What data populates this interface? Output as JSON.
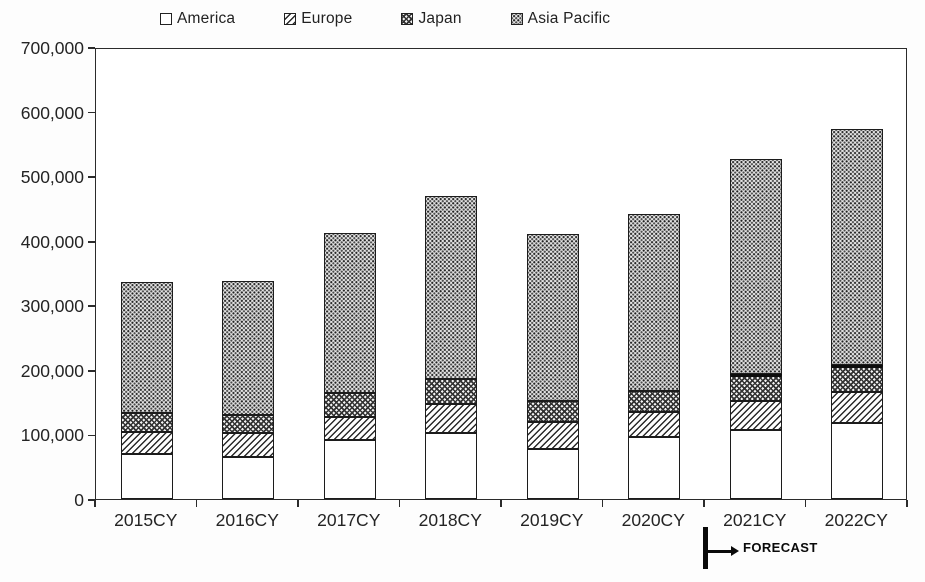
{
  "colors": {
    "ink": "#1f1f1f",
    "border": "#2b2b2b",
    "background": "#ffffff"
  },
  "legend": {
    "items": [
      {
        "label": "America",
        "pattern": "america",
        "swatch_icon": "white-square-icon"
      },
      {
        "label": "Europe",
        "pattern": "europe",
        "swatch_icon": "diagonal-hatch-square-icon"
      },
      {
        "label": "Japan",
        "pattern": "japan",
        "swatch_icon": "crosshatch-square-icon"
      },
      {
        "label": "Asia Pacific",
        "pattern": "asia",
        "swatch_icon": "dotted-square-icon"
      }
    ]
  },
  "chart_data": {
    "type": "bar",
    "stacked": true,
    "title": "",
    "xlabel": "",
    "ylabel": "",
    "categories": [
      "2015CY",
      "2016CY",
      "2017CY",
      "2018CY",
      "2019CY",
      "2020CY",
      "2021CY",
      "2022CY"
    ],
    "series": [
      {
        "name": "America",
        "values": [
          70000,
          65000,
          91000,
          103000,
          78000,
          96000,
          107000,
          118000
        ]
      },
      {
        "name": "Europe",
        "values": [
          34000,
          37000,
          36000,
          44000,
          42000,
          38000,
          45000,
          47000
        ]
      },
      {
        "name": "Japan",
        "values": [
          29000,
          28000,
          37000,
          39000,
          32000,
          34000,
          42000,
          42000
        ]
      },
      {
        "name": "Asia Pacific",
        "values": [
          203000,
          208000,
          248000,
          283000,
          258000,
          273000,
          333000,
          366000
        ]
      }
    ],
    "totals": [
      336000,
      338000,
      412000,
      469000,
      410000,
      441000,
      527000,
      573000
    ],
    "ylim": [
      0,
      700000
    ],
    "ytick_interval": 100000,
    "ytick_labels": [
      "0",
      "100,000",
      "200,000",
      "300,000",
      "400,000",
      "500,000",
      "600,000",
      "700,000"
    ],
    "grid": false,
    "legend_position": "top",
    "forecast_note": {
      "label": "FORECAST",
      "starts_at_category": "2021CY"
    }
  }
}
